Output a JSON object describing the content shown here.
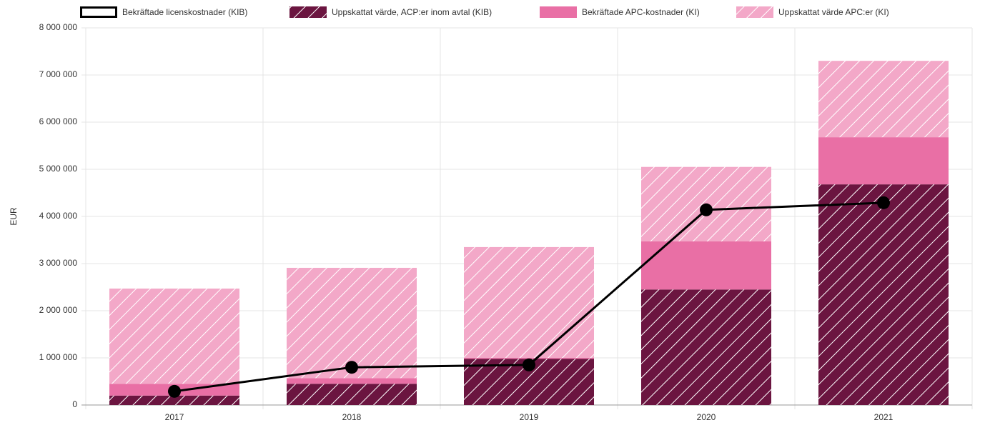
{
  "chart_data": {
    "type": "bar",
    "stacked": true,
    "legend": "top",
    "grid": true,
    "y_label": "EUR",
    "categories": [
      "2017",
      "2018",
      "2019",
      "2020",
      "2021"
    ],
    "ylim": [
      0,
      8000000
    ],
    "yticks": [
      0,
      {
        "value": 1000000,
        "label": "1 000 000"
      },
      {
        "value": 2000000,
        "label": "2 000 000"
      },
      {
        "value": 3000000,
        "label": "3 000 000"
      },
      {
        "value": 4000000,
        "label": "4 000 000"
      },
      {
        "value": 5000000,
        "label": "5 000 000"
      },
      {
        "value": 6000000,
        "label": "6 000 000"
      },
      {
        "value": 7000000,
        "label": "7 000 000"
      },
      {
        "value": 8000000,
        "label": "8 000 000"
      }
    ],
    "series": [
      {
        "name": "Bekräftade licenskostnader (KIB)",
        "type": "line",
        "color": "#000000",
        "values": [
          290000,
          800000,
          850000,
          4140000,
          4290000
        ]
      },
      {
        "name": "Uppskattat värde, ACP:er inom avtal (KIB)",
        "type": "bar",
        "hatch": true,
        "color": "#6b1540",
        "values": [
          200000,
          450000,
          980000,
          2450000,
          4680000
        ]
      },
      {
        "name": "Bekräftade APC-kostnader (KI)",
        "type": "bar",
        "hatch": false,
        "color": "#e96fa5",
        "values": [
          250000,
          120000,
          20000,
          1020000,
          1000000
        ]
      },
      {
        "name": "Uppskattat värde APC:er (KI)",
        "type": "bar",
        "hatch": true,
        "color": "#f3a8c8",
        "values": [
          2020000,
          2340000,
          2350000,
          1580000,
          1620000
        ]
      }
    ]
  }
}
